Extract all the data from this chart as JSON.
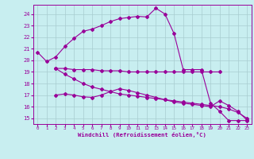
{
  "xlabel": "Windchill (Refroidissement éolien,°C)",
  "background_color": "#c8eef0",
  "grid_color": "#a8ccd0",
  "line_color": "#990099",
  "xlim": [
    -0.5,
    23.5
  ],
  "ylim": [
    14.5,
    24.8
  ],
  "yticks": [
    15,
    16,
    17,
    18,
    19,
    20,
    21,
    22,
    23,
    24
  ],
  "xticks": [
    0,
    1,
    2,
    3,
    4,
    5,
    6,
    7,
    8,
    9,
    10,
    11,
    12,
    13,
    14,
    15,
    16,
    17,
    18,
    19,
    20,
    21,
    22,
    23
  ],
  "line1_x": [
    0,
    1,
    2,
    3,
    4,
    5,
    6,
    7,
    8,
    9,
    10,
    11,
    12,
    13,
    14,
    15,
    16,
    17,
    18,
    19,
    20,
    21,
    22,
    23
  ],
  "line1_y": [
    20.7,
    19.9,
    20.3,
    21.2,
    21.9,
    22.5,
    22.7,
    23.0,
    23.35,
    23.6,
    23.7,
    23.8,
    23.75,
    24.5,
    24.0,
    22.3,
    19.2,
    19.2,
    19.2,
    16.3,
    15.6,
    14.8,
    14.8,
    14.8
  ],
  "line2_x": [
    2,
    3,
    4,
    5,
    6,
    7,
    8,
    9,
    10,
    11,
    12,
    13,
    14,
    15,
    16,
    17,
    18,
    19,
    20
  ],
  "line2_y": [
    19.3,
    19.3,
    19.2,
    19.2,
    19.2,
    19.1,
    19.1,
    19.1,
    19.0,
    19.0,
    19.0,
    19.0,
    19.0,
    19.0,
    19.0,
    19.0,
    19.0,
    19.0,
    19.0
  ],
  "line3_x": [
    2,
    3,
    4,
    5,
    6,
    7,
    8,
    9,
    10,
    11,
    12,
    13,
    14,
    15,
    16,
    17,
    18,
    19,
    20,
    21,
    22,
    23
  ],
  "line3_y": [
    17.0,
    17.1,
    17.0,
    16.85,
    16.8,
    17.0,
    17.3,
    17.55,
    17.4,
    17.2,
    17.0,
    16.8,
    16.6,
    16.4,
    16.3,
    16.2,
    16.1,
    16.0,
    16.5,
    16.1,
    15.6,
    14.85
  ],
  "line4_x": [
    2,
    3,
    4,
    5,
    6,
    7,
    8,
    9,
    10,
    11,
    12,
    13,
    14,
    15,
    16,
    17,
    18,
    19,
    20,
    21,
    22,
    23
  ],
  "line4_y": [
    19.3,
    18.8,
    18.4,
    18.0,
    17.7,
    17.5,
    17.3,
    17.1,
    17.0,
    16.9,
    16.8,
    16.7,
    16.6,
    16.5,
    16.4,
    16.3,
    16.2,
    16.1,
    16.0,
    15.8,
    15.5,
    15.0
  ]
}
